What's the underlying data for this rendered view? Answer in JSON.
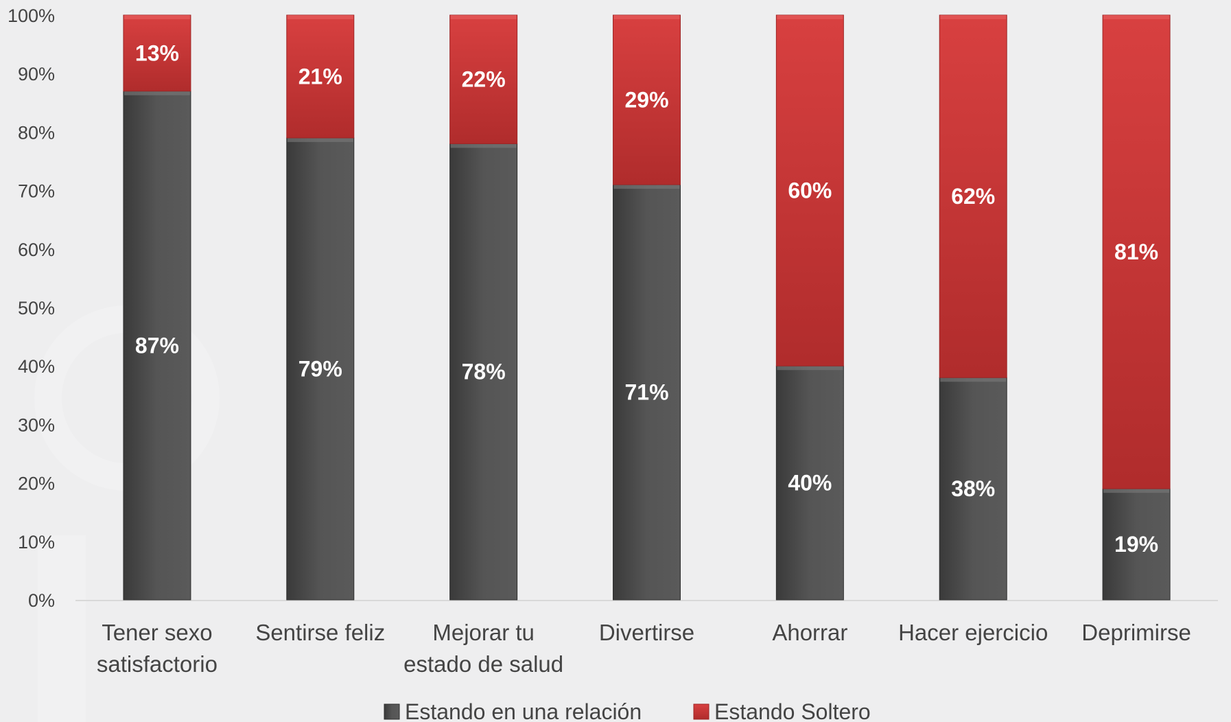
{
  "chart_data": {
    "type": "bar",
    "stacked": true,
    "percent_stacked": true,
    "categories": [
      [
        "Tener sexo",
        "satisfactorio"
      ],
      [
        "Sentirse feliz"
      ],
      [
        "Mejorar tu",
        "estado de salud"
      ],
      [
        "Divertirse"
      ],
      [
        "Ahorrar"
      ],
      [
        "Hacer ejercicio"
      ],
      [
        "Deprimirse"
      ]
    ],
    "series": [
      {
        "name": "Estando en una relación",
        "color": "#4d4d4d",
        "values": [
          87,
          79,
          78,
          71,
          40,
          38,
          19
        ],
        "labels": [
          "87%",
          "79%",
          "78%",
          "71%",
          "40%",
          "38%",
          "19%"
        ]
      },
      {
        "name": "Estando Soltero",
        "color": "#d23a3a",
        "values": [
          13,
          21,
          22,
          29,
          60,
          62,
          81
        ],
        "labels": [
          "13%",
          "21%",
          "22%",
          "29%",
          "60%",
          "62%",
          "81%"
        ]
      }
    ],
    "ylim": [
      0,
      100
    ],
    "yticks": [
      "0%",
      "10%",
      "20%",
      "30%",
      "40%",
      "50%",
      "60%",
      "70%",
      "80%",
      "90%",
      "100%"
    ],
    "legend_position": "bottom",
    "grid": false,
    "title": "",
    "xlabel": "",
    "ylabel": ""
  }
}
